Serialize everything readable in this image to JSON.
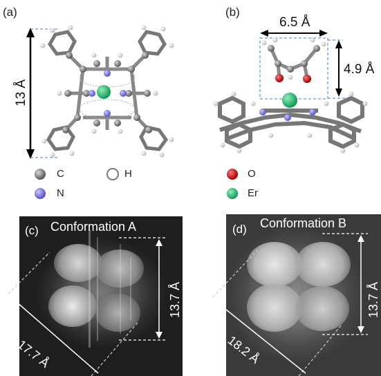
{
  "panels": {
    "a": {
      "label": "(a)",
      "dim_label": "13 Å"
    },
    "b": {
      "label": "(b)",
      "width_label": "6.5 Å",
      "height_label": "4.9 Å"
    },
    "c": {
      "label": "(c)",
      "title": "Conformation A",
      "height_label": "13.7 Å",
      "diag_label": "17.7 Å"
    },
    "d": {
      "label": "(d)",
      "title": "Conformation B",
      "height_label": "13.7 Å",
      "diag_label": "18.2 Å"
    }
  },
  "legend": {
    "C": "C",
    "H": "H",
    "N": "N",
    "O": "O",
    "Er": "Er"
  },
  "colors": {
    "carbon": "#7a7a7a",
    "nitrogen": "#7a78e0",
    "oxygen": "#d01010",
    "erbium": "#1fbf6a",
    "hydrogen": "#e8e8e8",
    "dashed_box": "#3a7fd0"
  }
}
